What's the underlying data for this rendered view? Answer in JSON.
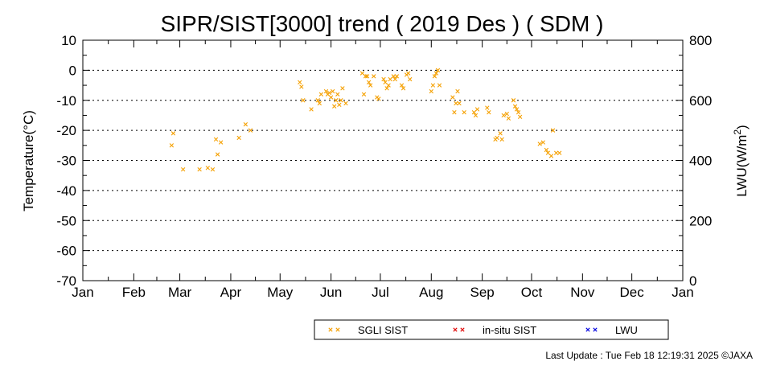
{
  "chart_data": {
    "type": "scatter",
    "title": "SIPR/SIST[3000] trend ( 2019 Des ) ( SDM )",
    "ylabel": "Temperature(°C)",
    "y2label_main": "LWU(W/m",
    "y2label_sup": "2",
    "y2label_close": ")",
    "ylim": [
      -70,
      10
    ],
    "y2lim": [
      0,
      800
    ],
    "yticks": [
      "10",
      "0",
      "-10",
      "-20",
      "-30",
      "-40",
      "-50",
      "-60",
      "-70"
    ],
    "y2ticks": [
      "800",
      "600",
      "400",
      "200",
      "0"
    ],
    "xtick_labels": [
      "Jan",
      "Feb",
      "Mar",
      "Apr",
      "May",
      "Jun",
      "Jul",
      "Aug",
      "Sep",
      "Oct",
      "Nov",
      "Dec",
      "Jan"
    ],
    "x_unit": "day of year",
    "grid": true,
    "legend_position": "bottom-center",
    "series": [
      {
        "name": "SGLI SIST",
        "color": "#f5a000",
        "points": [
          [
            54,
            -25
          ],
          [
            55,
            -21
          ],
          [
            61,
            -33
          ],
          [
            71,
            -33
          ],
          [
            76,
            -32.5
          ],
          [
            79,
            -33
          ],
          [
            81,
            -23
          ],
          [
            82,
            -28
          ],
          [
            84,
            -24
          ],
          [
            95,
            -22.5
          ],
          [
            99,
            -18
          ],
          [
            102,
            -20
          ],
          [
            132,
            -4
          ],
          [
            133,
            -5.5
          ],
          [
            134,
            -10
          ],
          [
            139,
            -13
          ],
          [
            143,
            -10
          ],
          [
            144,
            -11
          ],
          [
            145,
            -8
          ],
          [
            148,
            -7
          ],
          [
            149,
            -8
          ],
          [
            150,
            -7.5
          ],
          [
            151,
            -9
          ],
          [
            152,
            -7
          ],
          [
            153,
            -12
          ],
          [
            154,
            -10
          ],
          [
            155,
            -8
          ],
          [
            156,
            -11.5
          ],
          [
            157,
            -10
          ],
          [
            158,
            -6
          ],
          [
            160,
            -11
          ],
          [
            170,
            -1
          ],
          [
            171,
            -8
          ],
          [
            172,
            -2
          ],
          [
            173,
            -2
          ],
          [
            174,
            -4
          ],
          [
            175,
            -5
          ],
          [
            177,
            -2
          ],
          [
            179,
            -9
          ],
          [
            180,
            -9.5
          ],
          [
            183,
            -3
          ],
          [
            184,
            -4
          ],
          [
            185,
            -6
          ],
          [
            186,
            -5
          ],
          [
            187,
            -3
          ],
          [
            189,
            -2
          ],
          [
            190,
            -3
          ],
          [
            191,
            -2
          ],
          [
            194,
            -5
          ],
          [
            195,
            -6
          ],
          [
            197,
            -1.5
          ],
          [
            198,
            -1
          ],
          [
            199,
            -3
          ],
          [
            212,
            -7
          ],
          [
            213,
            -5
          ],
          [
            214,
            -2
          ],
          [
            215,
            -1
          ],
          [
            216,
            0
          ],
          [
            217,
            -5
          ],
          [
            225,
            -9
          ],
          [
            226,
            -14
          ],
          [
            227,
            -11
          ],
          [
            228,
            -7
          ],
          [
            229,
            -11
          ],
          [
            232,
            -14
          ],
          [
            238,
            -14
          ],
          [
            239,
            -15
          ],
          [
            240,
            -13
          ],
          [
            246,
            -12.5
          ],
          [
            247,
            -14
          ],
          [
            251,
            -23
          ],
          [
            252,
            -22.5
          ],
          [
            254,
            -21
          ],
          [
            255,
            -23
          ],
          [
            256,
            -15
          ],
          [
            258,
            -14.5
          ],
          [
            259,
            -16
          ],
          [
            262,
            -10
          ],
          [
            263,
            -12
          ],
          [
            264,
            -13
          ],
          [
            265,
            -14
          ],
          [
            266,
            -15.5
          ],
          [
            278,
            -24.5
          ],
          [
            280,
            -24
          ],
          [
            282,
            -26.5
          ],
          [
            283,
            -27.5
          ],
          [
            285,
            -28.5
          ],
          [
            286,
            -20
          ],
          [
            288,
            -27.5
          ],
          [
            290,
            -27.5
          ]
        ]
      },
      {
        "name": "in-situ SIST",
        "color": "#e00000",
        "points": []
      },
      {
        "name": "LWU",
        "color": "#0000e0",
        "points": []
      }
    ]
  },
  "legend": {
    "items": [
      {
        "label": "SGLI SIST",
        "color": "#f5a000"
      },
      {
        "label": "in-situ SIST",
        "color": "#e00000"
      },
      {
        "label": "LWU",
        "color": "#0000e0"
      }
    ]
  },
  "footer": {
    "last_update": "Last Update : Tue Feb 18 12:19:31 2025  ©JAXA"
  }
}
